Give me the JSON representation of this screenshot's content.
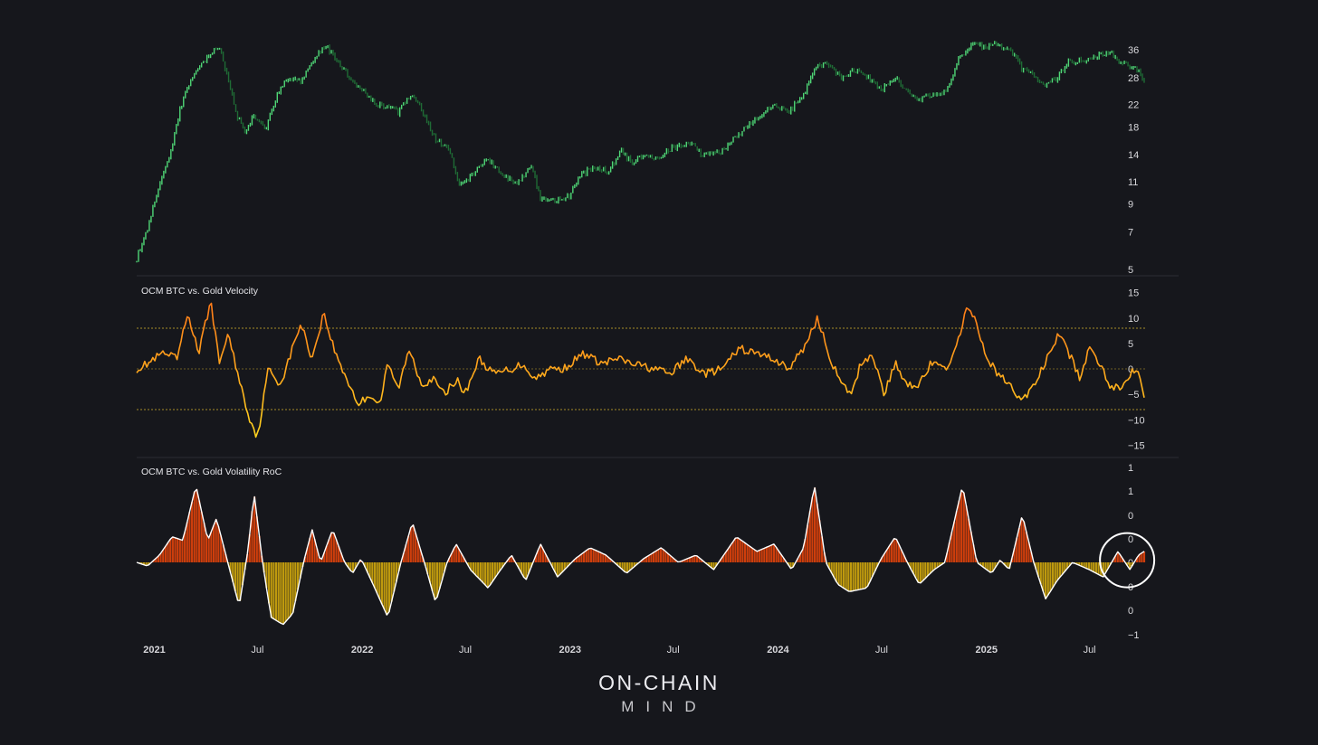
{
  "brand": {
    "line1": "ON-CHAIN",
    "line2": "MIND"
  },
  "colors": {
    "background": "#16171c",
    "price_up": "#4fd676",
    "price_dim": "#1f6b35",
    "velocity_high": "#ff7a18",
    "velocity_low": "#ffd21f",
    "roc_positive": "#d8410c",
    "roc_negative": "#c9a20e",
    "roc_outline": "#ffffff",
    "band": "#b79a2a",
    "divider": "#2c2d33"
  },
  "chart_data": [
    {
      "type": "line",
      "panel": "price",
      "title": "",
      "y_scale": "log",
      "yticks": [
        "36",
        "28",
        "22",
        "18",
        "14",
        "11",
        "9",
        "7",
        "5"
      ],
      "ylim": [
        5,
        40
      ],
      "x_start": "2020-12-01",
      "x_end": "2025-10-05",
      "points": [
        [
          "2020-12-01",
          5.5
        ],
        [
          "2020-12-20",
          7.2
        ],
        [
          "2021-01-10",
          10.5
        ],
        [
          "2021-01-31",
          14.5
        ],
        [
          "2021-02-15",
          21
        ],
        [
          "2021-03-01",
          26
        ],
        [
          "2021-03-20",
          31
        ],
        [
          "2021-04-10",
          35
        ],
        [
          "2021-04-25",
          36.5
        ],
        [
          "2021-05-15",
          25
        ],
        [
          "2021-05-25",
          20
        ],
        [
          "2021-06-10",
          17
        ],
        [
          "2021-06-25",
          20
        ],
        [
          "2021-07-15",
          17.5
        ],
        [
          "2021-08-05",
          24
        ],
        [
          "2021-08-25",
          28
        ],
        [
          "2021-09-15",
          27
        ],
        [
          "2021-10-01",
          31
        ],
        [
          "2021-10-15",
          35
        ],
        [
          "2021-10-30",
          37
        ],
        [
          "2021-11-20",
          32
        ],
        [
          "2021-12-10",
          28
        ],
        [
          "2022-01-10",
          24
        ],
        [
          "2022-01-25",
          22
        ],
        [
          "2022-02-15",
          21.5
        ],
        [
          "2022-03-05",
          20.5
        ],
        [
          "2022-03-28",
          24
        ],
        [
          "2022-04-20",
          20
        ],
        [
          "2022-05-10",
          16
        ],
        [
          "2022-06-01",
          15
        ],
        [
          "2022-06-20",
          10.5
        ],
        [
          "2022-07-10",
          11.5
        ],
        [
          "2022-08-10",
          13.5
        ],
        [
          "2022-09-05",
          11.5
        ],
        [
          "2022-10-01",
          11
        ],
        [
          "2022-10-25",
          12.5
        ],
        [
          "2022-11-10",
          9.5
        ],
        [
          "2022-12-10",
          9.3
        ],
        [
          "2022-12-31",
          9.6
        ],
        [
          "2023-01-20",
          11.8
        ],
        [
          "2023-02-15",
          12.5
        ],
        [
          "2023-03-10",
          12
        ],
        [
          "2023-04-01",
          14.5
        ],
        [
          "2023-04-20",
          13
        ],
        [
          "2023-05-10",
          14
        ],
        [
          "2023-06-05",
          13.5
        ],
        [
          "2023-06-30",
          15
        ],
        [
          "2023-08-01",
          15.5
        ],
        [
          "2023-08-20",
          14
        ],
        [
          "2023-09-25",
          14.5
        ],
        [
          "2023-10-25",
          17
        ],
        [
          "2023-11-25",
          19.5
        ],
        [
          "2023-12-25",
          22
        ],
        [
          "2024-01-20",
          20.5
        ],
        [
          "2024-02-15",
          24
        ],
        [
          "2024-03-10",
          31
        ],
        [
          "2024-03-30",
          31.5
        ],
        [
          "2024-04-20",
          28
        ],
        [
          "2024-05-15",
          30
        ],
        [
          "2024-06-05",
          28.5
        ],
        [
          "2024-07-01",
          25
        ],
        [
          "2024-07-25",
          28
        ],
        [
          "2024-08-15",
          25
        ],
        [
          "2024-09-05",
          23
        ],
        [
          "2024-10-01",
          24
        ],
        [
          "2024-10-25",
          25
        ],
        [
          "2024-11-15",
          34
        ],
        [
          "2024-12-10",
          38
        ],
        [
          "2024-12-25",
          37
        ],
        [
          "2025-01-20",
          38
        ],
        [
          "2025-02-15",
          35
        ],
        [
          "2025-03-05",
          30
        ],
        [
          "2025-03-25",
          28.5
        ],
        [
          "2025-04-15",
          26
        ],
        [
          "2025-05-05",
          28
        ],
        [
          "2025-05-25",
          32
        ],
        [
          "2025-06-15",
          32.5
        ],
        [
          "2025-07-10",
          34
        ],
        [
          "2025-08-01",
          35.5
        ],
        [
          "2025-08-20",
          33
        ],
        [
          "2025-09-10",
          31
        ],
        [
          "2025-09-25",
          30
        ],
        [
          "2025-10-05",
          26.5
        ]
      ]
    },
    {
      "type": "line",
      "panel": "velocity",
      "title": "OCM BTC vs. Gold Velocity",
      "yticks": [
        "15",
        "10",
        "5",
        "0",
        "−5",
        "−10",
        "−15"
      ],
      "ytick_values": [
        15,
        10,
        5,
        0,
        -5,
        -10,
        -15
      ],
      "ylim": [
        -16,
        16
      ],
      "bands": [
        8,
        0,
        -8
      ],
      "points": [
        [
          "2020-12-01",
          0
        ],
        [
          "2020-12-20",
          1
        ],
        [
          "2021-01-15",
          3
        ],
        [
          "2021-02-10",
          2
        ],
        [
          "2021-03-01",
          11
        ],
        [
          "2021-03-20",
          3
        ],
        [
          "2021-04-10",
          13.5
        ],
        [
          "2021-04-25",
          1
        ],
        [
          "2021-05-10",
          7
        ],
        [
          "2021-05-30",
          -2
        ],
        [
          "2021-06-15",
          -9
        ],
        [
          "2021-07-01",
          -13.5
        ],
        [
          "2021-07-20",
          0
        ],
        [
          "2021-08-10",
          -3
        ],
        [
          "2021-08-20",
          0
        ],
        [
          "2021-09-15",
          9
        ],
        [
          "2021-10-05",
          2
        ],
        [
          "2021-10-25",
          11
        ],
        [
          "2021-11-15",
          3
        ],
        [
          "2021-12-05",
          -2
        ],
        [
          "2021-12-25",
          -7
        ],
        [
          "2022-01-15",
          -5
        ],
        [
          "2022-02-01",
          -7
        ],
        [
          "2022-02-15",
          1
        ],
        [
          "2022-03-05",
          -4
        ],
        [
          "2022-03-25",
          4
        ],
        [
          "2022-04-15",
          -3
        ],
        [
          "2022-05-05",
          -2
        ],
        [
          "2022-05-25",
          -5
        ],
        [
          "2022-06-15",
          -2
        ],
        [
          "2022-06-30",
          -5
        ],
        [
          "2022-07-25",
          2
        ],
        [
          "2022-08-20",
          -1
        ],
        [
          "2022-09-20",
          0
        ],
        [
          "2022-10-10",
          1
        ],
        [
          "2022-11-01",
          -2
        ],
        [
          "2022-11-25",
          0
        ],
        [
          "2022-12-20",
          0
        ],
        [
          "2023-01-25",
          3
        ],
        [
          "2023-02-25",
          1
        ],
        [
          "2023-03-25",
          2
        ],
        [
          "2023-04-20",
          1
        ],
        [
          "2023-05-30",
          0
        ],
        [
          "2023-06-25",
          -1
        ],
        [
          "2023-07-25",
          2
        ],
        [
          "2023-08-25",
          -1
        ],
        [
          "2023-09-25",
          0
        ],
        [
          "2023-10-25",
          4
        ],
        [
          "2023-11-25",
          3
        ],
        [
          "2023-12-25",
          2
        ],
        [
          "2024-01-20",
          0
        ],
        [
          "2024-02-15",
          4
        ],
        [
          "2024-03-10",
          10
        ],
        [
          "2024-03-30",
          3
        ],
        [
          "2024-04-20",
          -3
        ],
        [
          "2024-05-10",
          -5
        ],
        [
          "2024-05-25",
          1
        ],
        [
          "2024-06-15",
          3
        ],
        [
          "2024-07-05",
          -5
        ],
        [
          "2024-07-25",
          1
        ],
        [
          "2024-08-15",
          -3
        ],
        [
          "2024-09-05",
          -3
        ],
        [
          "2024-09-25",
          1
        ],
        [
          "2024-10-20",
          0
        ],
        [
          "2024-11-10",
          4
        ],
        [
          "2024-11-25",
          12
        ],
        [
          "2024-12-10",
          10
        ],
        [
          "2024-12-30",
          3
        ],
        [
          "2025-01-20",
          -1
        ],
        [
          "2025-02-10",
          -3
        ],
        [
          "2025-02-28",
          -6
        ],
        [
          "2025-03-15",
          -5
        ],
        [
          "2025-04-05",
          -1
        ],
        [
          "2025-04-25",
          4
        ],
        [
          "2025-05-10",
          7
        ],
        [
          "2025-05-30",
          2
        ],
        [
          "2025-06-15",
          -2
        ],
        [
          "2025-07-01",
          4
        ],
        [
          "2025-07-20",
          1
        ],
        [
          "2025-08-05",
          -3
        ],
        [
          "2025-08-25",
          -4
        ],
        [
          "2025-09-15",
          0
        ],
        [
          "2025-09-25",
          0
        ],
        [
          "2025-10-05",
          -5
        ]
      ]
    },
    {
      "type": "area",
      "panel": "volatility_roc",
      "title": "OCM BTC vs. Gold Volatility RoC",
      "yticks": [
        "1",
        "1",
        "0",
        "0",
        "0",
        "0",
        "0",
        "−1"
      ],
      "ylim": [
        -1.2,
        1.2
      ],
      "highlight": {
        "center_date": "2025-09-05",
        "center_value": 0.03,
        "shape": "circle"
      },
      "points": [
        [
          "2020-12-01",
          0
        ],
        [
          "2020-12-20",
          -0.05
        ],
        [
          "2021-01-10",
          0.1
        ],
        [
          "2021-02-01",
          0.35
        ],
        [
          "2021-02-20",
          0.3
        ],
        [
          "2021-03-15",
          1.05
        ],
        [
          "2021-04-05",
          0.3
        ],
        [
          "2021-04-20",
          0.6
        ],
        [
          "2021-05-10",
          0
        ],
        [
          "2021-05-30",
          -0.6
        ],
        [
          "2021-06-15",
          0.2
        ],
        [
          "2021-06-25",
          0.95
        ],
        [
          "2021-07-10",
          0
        ],
        [
          "2021-07-25",
          -0.75
        ],
        [
          "2021-08-15",
          -0.85
        ],
        [
          "2021-09-01",
          -0.7
        ],
        [
          "2021-09-20",
          0
        ],
        [
          "2021-10-05",
          0.45
        ],
        [
          "2021-10-20",
          0
        ],
        [
          "2021-11-10",
          0.45
        ],
        [
          "2021-12-01",
          0
        ],
        [
          "2021-12-15",
          -0.15
        ],
        [
          "2021-12-30",
          0.05
        ],
        [
          "2022-01-20",
          -0.3
        ],
        [
          "2022-02-15",
          -0.75
        ],
        [
          "2022-03-10",
          0
        ],
        [
          "2022-03-30",
          0.55
        ],
        [
          "2022-04-20",
          0
        ],
        [
          "2022-05-10",
          -0.55
        ],
        [
          "2022-05-30",
          0
        ],
        [
          "2022-06-15",
          0.25
        ],
        [
          "2022-07-10",
          -0.1
        ],
        [
          "2022-08-10",
          -0.35
        ],
        [
          "2022-09-01",
          -0.1
        ],
        [
          "2022-09-20",
          0.1
        ],
        [
          "2022-10-15",
          -0.25
        ],
        [
          "2022-11-10",
          0.25
        ],
        [
          "2022-12-10",
          -0.2
        ],
        [
          "2023-01-10",
          0.05
        ],
        [
          "2023-02-05",
          0.2
        ],
        [
          "2023-03-05",
          0.1
        ],
        [
          "2023-04-10",
          -0.15
        ],
        [
          "2023-05-10",
          0.05
        ],
        [
          "2023-06-10",
          0.2
        ],
        [
          "2023-07-10",
          0
        ],
        [
          "2023-08-10",
          0.1
        ],
        [
          "2023-09-10",
          -0.1
        ],
        [
          "2023-10-20",
          0.35
        ],
        [
          "2023-11-25",
          0.15
        ],
        [
          "2023-12-25",
          0.25
        ],
        [
          "2024-01-25",
          -0.1
        ],
        [
          "2024-02-15",
          0.2
        ],
        [
          "2024-03-05",
          1.05
        ],
        [
          "2024-03-25",
          0
        ],
        [
          "2024-04-15",
          -0.3
        ],
        [
          "2024-05-05",
          -0.4
        ],
        [
          "2024-06-05",
          -0.35
        ],
        [
          "2024-06-30",
          0.05
        ],
        [
          "2024-07-25",
          0.35
        ],
        [
          "2024-08-15",
          0
        ],
        [
          "2024-09-05",
          -0.3
        ],
        [
          "2024-10-01",
          -0.1
        ],
        [
          "2024-10-20",
          0
        ],
        [
          "2024-11-20",
          1.05
        ],
        [
          "2024-12-15",
          0
        ],
        [
          "2025-01-10",
          -0.15
        ],
        [
          "2025-01-25",
          0.03
        ],
        [
          "2025-02-10",
          -0.1
        ],
        [
          "2025-03-05",
          0.65
        ],
        [
          "2025-03-25",
          0
        ],
        [
          "2025-04-15",
          -0.5
        ],
        [
          "2025-05-05",
          -0.25
        ],
        [
          "2025-06-01",
          0
        ],
        [
          "2025-07-01",
          -0.1
        ],
        [
          "2025-07-25",
          -0.2
        ],
        [
          "2025-08-20",
          0.15
        ],
        [
          "2025-09-10",
          -0.1
        ],
        [
          "2025-09-25",
          0.1
        ],
        [
          "2025-10-05",
          0.15
        ]
      ]
    }
  ],
  "x_axis": {
    "ticks": [
      {
        "label": "2021",
        "date": "2021-01-01",
        "bold": true
      },
      {
        "label": "Jul",
        "date": "2021-07-01",
        "bold": false
      },
      {
        "label": "2022",
        "date": "2022-01-01",
        "bold": true
      },
      {
        "label": "Jul",
        "date": "2022-07-01",
        "bold": false
      },
      {
        "label": "2023",
        "date": "2023-01-01",
        "bold": true
      },
      {
        "label": "Jul",
        "date": "2023-07-01",
        "bold": false
      },
      {
        "label": "2024",
        "date": "2024-01-01",
        "bold": true
      },
      {
        "label": "Jul",
        "date": "2024-07-01",
        "bold": false
      },
      {
        "label": "2025",
        "date": "2025-01-01",
        "bold": true
      },
      {
        "label": "Jul",
        "date": "2025-07-01",
        "bold": false
      }
    ]
  }
}
